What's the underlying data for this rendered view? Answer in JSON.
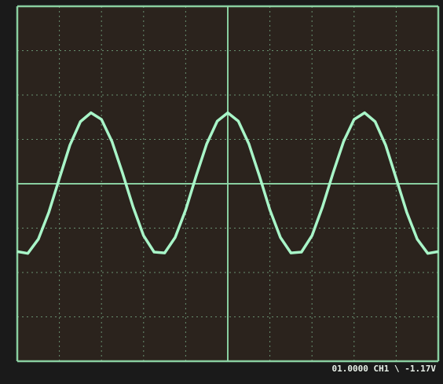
{
  "chart_data": {
    "type": "line",
    "readout": "01.0000  CH1 \\  -1.17V",
    "x": [
      -5,
      -4.75,
      -4.5,
      -4.25,
      -4,
      -3.75,
      -3.5,
      -3.25,
      -3,
      -2.75,
      -2.5,
      -2.25,
      -2,
      -1.75,
      -1.5,
      -1.25,
      -1,
      -0.75,
      -0.5,
      -0.25,
      0,
      0.25,
      0.5,
      0.75,
      1,
      1.25,
      1.5,
      1.75,
      2,
      2.25,
      2.5,
      2.75,
      3,
      3.25,
      3.5,
      3.75,
      4,
      4.25,
      4.5,
      4.75,
      5
    ],
    "series": [
      {
        "color": "#a8f5c8",
        "values": [
          -1.53,
          -1.57,
          -1.25,
          -0.64,
          0.12,
          0.87,
          1.4,
          1.6,
          1.45,
          0.95,
          0.24,
          -0.52,
          -1.17,
          -1.54,
          -1.56,
          -1.21,
          -0.59,
          0.18,
          0.9,
          1.41,
          1.6,
          1.41,
          0.9,
          0.18,
          -0.59,
          -1.21,
          -1.56,
          -1.54,
          -1.17,
          -0.52,
          0.24,
          0.95,
          1.45,
          1.6,
          1.4,
          0.87,
          0.12,
          -0.64,
          -1.25,
          -1.57,
          -1.53
        ]
      }
    ],
    "xlim": [
      -5,
      5
    ],
    "ylim": [
      -4,
      4
    ],
    "xticks": [
      -5,
      -4,
      -3,
      -2,
      -1,
      0,
      1,
      2,
      3,
      4,
      5
    ],
    "yticks": [
      -4,
      -3,
      -2,
      -1,
      0,
      1,
      2,
      3,
      4
    ],
    "grid": true,
    "grid_color": "#8fd8a8",
    "background": "#2b231d"
  }
}
